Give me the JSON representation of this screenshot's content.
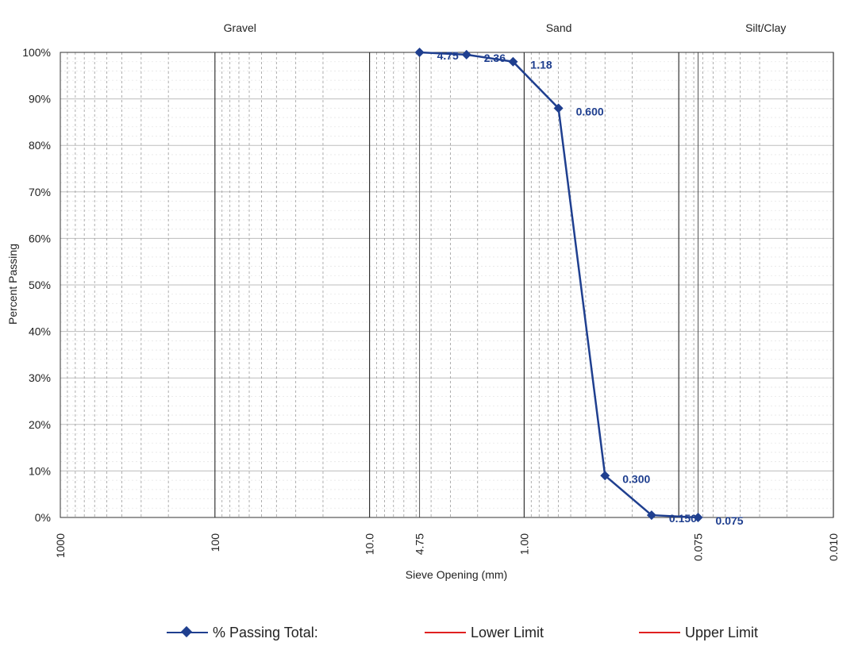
{
  "chart_data": {
    "type": "line",
    "ylabel": "Percent Passing",
    "xlabel": "Sieve Opening (mm)",
    "x_scale": "log-reversed",
    "xlim": [
      1000,
      0.01
    ],
    "ylim": [
      0,
      100
    ],
    "y_ticks": [
      "0%",
      "10%",
      "20%",
      "30%",
      "40%",
      "50%",
      "60%",
      "70%",
      "80%",
      "90%",
      "100%"
    ],
    "y_tick_values": [
      0,
      10,
      20,
      30,
      40,
      50,
      60,
      70,
      80,
      90,
      100
    ],
    "x_ticks": [
      {
        "value": 1000,
        "label": "1000"
      },
      {
        "value": 100,
        "label": "100"
      },
      {
        "value": 10,
        "label": "10.0"
      },
      {
        "value": 4.75,
        "label": "4.75"
      },
      {
        "value": 1,
        "label": "1.00"
      },
      {
        "value": 0.075,
        "label": "0.075"
      },
      {
        "value": 0.01,
        "label": "0.010"
      }
    ],
    "zones": [
      {
        "label": "Gravel",
        "from": 1000,
        "to": 4.75
      },
      {
        "label": "Sand",
        "from": 4.75,
        "to": 0.075
      },
      {
        "label": "Silt/Clay",
        "from": 0.075,
        "to": 0.01
      }
    ],
    "grid": true,
    "series": [
      {
        "name": "% Passing Total:",
        "color": "#1f3f8f",
        "marker": "diamond",
        "x": [
          4.75,
          2.36,
          1.18,
          0.6,
          0.3,
          0.15,
          0.075
        ],
        "y": [
          100,
          99.5,
          98,
          88,
          9,
          0.5,
          0
        ],
        "point_labels": [
          "4.75",
          "2.36",
          "1.18",
          "0.600",
          "0.300",
          "0.150",
          "0.075"
        ]
      },
      {
        "name": "Lower Limit",
        "color": "#e02020",
        "x": [],
        "y": []
      },
      {
        "name": "Upper Limit",
        "color": "#e02020",
        "x": [],
        "y": []
      }
    ]
  }
}
